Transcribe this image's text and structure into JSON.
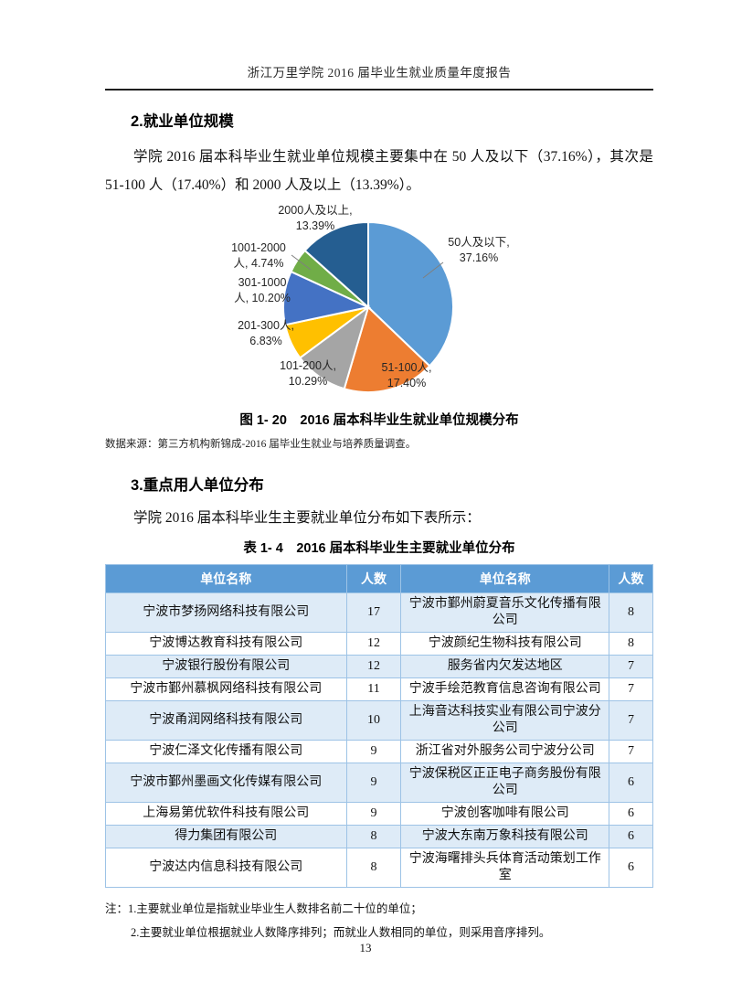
{
  "header": {
    "title": "浙江万里学院 2016 届毕业生就业质量年度报告",
    "page_number": "13"
  },
  "section2": {
    "heading": "2.就业单位规模",
    "paragraph": "学院 2016 届本科毕业生就业单位规模主要集中在 50 人及以下（37.16%），其次是 51-100 人（17.40%）和 2000 人及以上（13.39%）。",
    "figure_caption": "图 1- 20　2016 届本科毕业生就业单位规模分布",
    "source_note": "数据来源：第三方机构新锦成-2016 届毕业生就业与培养质量调查。"
  },
  "chart_data": {
    "type": "pie",
    "title": "2016 届本科毕业生就业单位规模分布",
    "start_angle_deg": 0,
    "direction": "clockwise",
    "legend_position": "none",
    "slices": [
      {
        "label": "50人及以下",
        "value": 37.16,
        "color": "#5B9BD5",
        "label_line1": "50人及以下,",
        "label_line2": "37.16%"
      },
      {
        "label": "51-100人",
        "value": 17.4,
        "color": "#ED7D31",
        "label_line1": "51-100人,",
        "label_line2": "17.40%"
      },
      {
        "label": "101-200人",
        "value": 10.29,
        "color": "#A5A5A5",
        "label_line1": "101-200人,",
        "label_line2": "10.29%"
      },
      {
        "label": "201-300人",
        "value": 6.83,
        "color": "#FFC000",
        "label_line1": "201-300人,",
        "label_line2": "6.83%"
      },
      {
        "label": "301-1000人",
        "value": 10.2,
        "color": "#4472C4",
        "label_line1": "301-1000",
        "label_line2": "人, 10.20%"
      },
      {
        "label": "1001-2000人",
        "value": 4.74,
        "color": "#70AD47",
        "label_line1": "1001-2000",
        "label_line2": "人, 4.74%"
      },
      {
        "label": "2000人及以上",
        "value": 13.39,
        "color": "#255E91",
        "label_line1": "2000人及以上,",
        "label_line2": "13.39%"
      }
    ]
  },
  "section3": {
    "heading": "3.重点用人单位分布",
    "paragraph": "学院 2016 届本科毕业生主要就业单位分布如下表所示：",
    "table_caption": "表 1- 4　2016 届本科毕业生主要就业单位分布"
  },
  "table": {
    "headers": [
      "单位名称",
      "人数",
      "单位名称",
      "人数"
    ],
    "rows": [
      [
        "宁波市梦扬网络科技有限公司",
        "17",
        "宁波市鄞州蔚夏音乐文化传播有限公司",
        "8"
      ],
      [
        "宁波博达教育科技有限公司",
        "12",
        "宁波颜纪生物科技有限公司",
        "8"
      ],
      [
        "宁波银行股份有限公司",
        "12",
        "服务省内欠发达地区",
        "7"
      ],
      [
        "宁波市鄞州慕枫网络科技有限公司",
        "11",
        "宁波手绘范教育信息咨询有限公司",
        "7"
      ],
      [
        "宁波甬润网络科技有限公司",
        "10",
        "上海音达科技实业有限公司宁波分公司",
        "7"
      ],
      [
        "宁波仁泽文化传播有限公司",
        "9",
        "浙江省对外服务公司宁波分公司",
        "7"
      ],
      [
        "宁波市鄞州墨画文化传媒有限公司",
        "9",
        "宁波保税区正正电子商务股份有限公司",
        "6"
      ],
      [
        "上海易第优软件科技有限公司",
        "9",
        "宁波创客咖啡有限公司",
        "6"
      ],
      [
        "得力集团有限公司",
        "8",
        "宁波大东南万象科技有限公司",
        "6"
      ],
      [
        "宁波达内信息科技有限公司",
        "8",
        "宁波海曙排头兵体育活动策划工作室",
        "6"
      ]
    ],
    "notes": [
      "注：1.主要就业单位是指就业毕业生人数排名前二十位的单位；",
      "2.主要就业单位根据就业人数降序排列；而就业人数相同的单位，则采用音序排列。"
    ]
  }
}
